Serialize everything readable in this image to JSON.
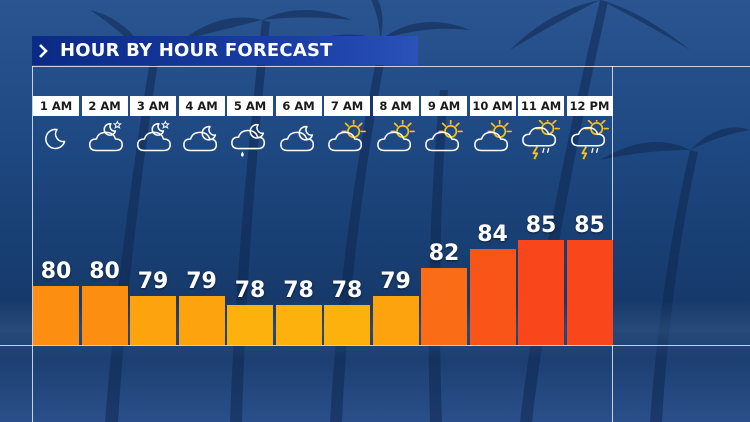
{
  "title": "HOUR BY HOUR FORECAST",
  "colors": {
    "title_bar": "#0b2a86",
    "temp_78": "#fdb10c",
    "temp_79": "#fca30d",
    "temp_80": "#fc8f11",
    "temp_82": "#fb6c16",
    "temp_84": "#fa5519",
    "temp_85": "#f9471b"
  },
  "forecast": [
    {
      "time": "1 AM",
      "temp": "80",
      "icon": "moon-icon"
    },
    {
      "time": "2 AM",
      "temp": "80",
      "icon": "cloud-moon-star-icon"
    },
    {
      "time": "3 AM",
      "temp": "79",
      "icon": "cloud-moon-star-icon"
    },
    {
      "time": "4 AM",
      "temp": "79",
      "icon": "cloud-moon-icon"
    },
    {
      "time": "5 AM",
      "temp": "78",
      "icon": "cloud-moon-rain-icon"
    },
    {
      "time": "6 AM",
      "temp": "78",
      "icon": "cloud-moon-icon"
    },
    {
      "time": "7 AM",
      "temp": "78",
      "icon": "cloud-sun-icon"
    },
    {
      "time": "8 AM",
      "temp": "79",
      "icon": "cloud-sun-icon"
    },
    {
      "time": "9 AM",
      "temp": "82",
      "icon": "cloud-sun-icon"
    },
    {
      "time": "10 AM",
      "temp": "84",
      "icon": "cloud-sun-icon"
    },
    {
      "time": "11 AM",
      "temp": "85",
      "icon": "thunderstorm-sun-icon"
    },
    {
      "time": "12 PM",
      "temp": "85",
      "icon": "thunderstorm-sun-icon"
    }
  ]
}
